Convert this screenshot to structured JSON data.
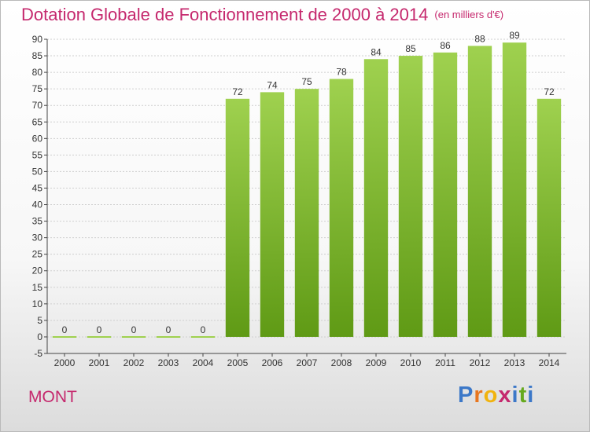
{
  "title": "Dotation Globale de Fonctionnement de 2000 à 2014",
  "unit_label": "(en milliers d'€)",
  "commune": "MONT",
  "logo": {
    "text": "Proxiti",
    "letters": [
      "P",
      "r",
      "o",
      "x",
      "i",
      "t",
      "i"
    ],
    "colors": [
      "#3c78c8",
      "#e8761f",
      "#f1b30e",
      "#c5286d",
      "#3c78c8",
      "#66a91e",
      "#3c78c8"
    ]
  },
  "colors": {
    "bar_top": "#9fd14f",
    "bar_bottom": "#5f9a15",
    "title": "#c5286d",
    "axis": "#444444"
  },
  "chart_data": {
    "type": "bar",
    "categories": [
      "2000",
      "2001",
      "2002",
      "2003",
      "2004",
      "2005",
      "2006",
      "2007",
      "2008",
      "2009",
      "2010",
      "2011",
      "2012",
      "2013",
      "2014"
    ],
    "values": [
      0,
      0,
      0,
      0,
      0,
      72,
      74,
      75,
      78,
      84,
      85,
      86,
      88,
      89,
      72
    ],
    "ylim": [
      -5,
      90
    ],
    "yticks": [
      -5,
      0,
      5,
      10,
      15,
      20,
      25,
      30,
      35,
      40,
      45,
      50,
      55,
      60,
      65,
      70,
      75,
      80,
      85,
      90
    ],
    "grid": true,
    "legend": "none"
  }
}
